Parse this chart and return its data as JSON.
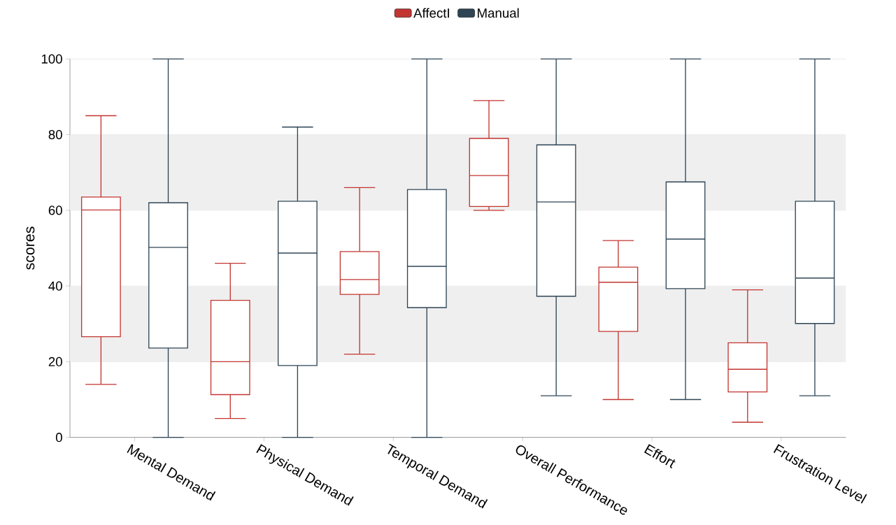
{
  "chart_data": {
    "type": "box",
    "ylabel": "scores",
    "categories": [
      "Mental Demand",
      "Physical Demand",
      "Temporal Demand",
      "Overall Performance",
      "Effort",
      "Frustration Level"
    ],
    "ylim": [
      0,
      100
    ],
    "yticks": [
      0,
      20,
      40,
      60,
      80,
      100
    ],
    "grid": "y",
    "legend": "top",
    "bands": [
      {
        "axis": "y",
        "from": 20,
        "to": 40,
        "color": "#efefef"
      },
      {
        "axis": "y",
        "from": 60,
        "to": 80,
        "color": "#efefef"
      }
    ],
    "series": [
      {
        "name": "AffectI",
        "color": "#c23531",
        "boxes": [
          {
            "low": 14,
            "q1": 26.6,
            "median": 60.1,
            "q3": 63.5,
            "high": 85
          },
          {
            "low": 5,
            "q1": 11.3,
            "median": 20,
            "q3": 36.2,
            "high": 46
          },
          {
            "low": 22,
            "q1": 37.8,
            "median": 41.7,
            "q3": 49.1,
            "high": 66
          },
          {
            "low": 60,
            "q1": 61,
            "median": 69.2,
            "q3": 79,
            "high": 89
          },
          {
            "low": 10,
            "q1": 28,
            "median": 41,
            "q3": 45,
            "high": 52
          },
          {
            "low": 4,
            "q1": 12,
            "median": 18,
            "q3": 25,
            "high": 39
          }
        ]
      },
      {
        "name": "Manual",
        "color": "#2f4554",
        "boxes": [
          {
            "low": 0,
            "q1": 23.6,
            "median": 50.2,
            "q3": 62,
            "high": 100
          },
          {
            "low": 0,
            "q1": 19,
            "median": 48.7,
            "q3": 62.4,
            "high": 82
          },
          {
            "low": 0,
            "q1": 34.3,
            "median": 45.2,
            "q3": 65.5,
            "high": 100
          },
          {
            "low": 11,
            "q1": 37.3,
            "median": 62.2,
            "q3": 77.3,
            "high": 100
          },
          {
            "low": 10,
            "q1": 39.3,
            "median": 52.4,
            "q3": 67.5,
            "high": 100
          },
          {
            "low": 11,
            "q1": 30.1,
            "median": 42.1,
            "q3": 62.4,
            "high": 100
          }
        ]
      }
    ]
  }
}
